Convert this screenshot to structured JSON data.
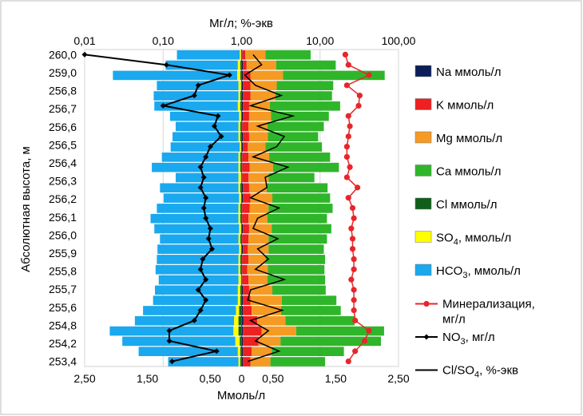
{
  "chart_data": {
    "type": "bar",
    "orientation": "horizontal",
    "title": "",
    "top_axis": {
      "label": "Мг/л; %-экв",
      "scale": "log",
      "range": [
        0.01,
        100
      ],
      "ticks": [
        "0,01",
        "0,10",
        "1,00",
        "10,00",
        "100,00"
      ]
    },
    "bottom_axis": {
      "label": "Ммоль/л",
      "range": [
        -2.5,
        2.5
      ],
      "ticks": [
        "2,50",
        "1,50",
        "0,50",
        "0",
        "0,50",
        "1,50",
        "2,50"
      ]
    },
    "y_axis": {
      "label": "Абсолютная высота, м",
      "tick_labels": [
        "260,0",
        "259,0",
        "256,8",
        "256,7",
        "256,6",
        "256,5",
        "256,4",
        "256,3",
        "256,2",
        "256,1",
        "256,0",
        "255,9",
        "255,8",
        "255,7",
        "255,6",
        "254,8",
        "254,2",
        "253,4"
      ]
    },
    "grid": "vertical",
    "legend_position": "right",
    "colors": {
      "Na": "#0a1e5a",
      "K": "#ee2020",
      "Mg": "#f59a23",
      "Ca": "#2fb52a",
      "Cl": "#0f5f1a",
      "SO4": "#ffff00",
      "HCO3": "#1aa8ee",
      "mineralization": "#e8262a",
      "NO3": "#000000",
      "ClSO4": "#000000"
    },
    "legend": [
      {
        "key": "Na",
        "label": "Na ммоль/л",
        "kind": "bar"
      },
      {
        "key": "K",
        "label": "K ммоль/л",
        "kind": "bar"
      },
      {
        "key": "Mg",
        "label": "Mg ммоль/л",
        "kind": "bar"
      },
      {
        "key": "Ca",
        "label": "Ca ммоль/л",
        "kind": "bar"
      },
      {
        "key": "Cl",
        "label": "Cl ммоль/л",
        "kind": "bar"
      },
      {
        "key": "SO4",
        "label_main": "SO",
        "label_sub": "4",
        "label_rest": ", ммоль/л",
        "kind": "bar"
      },
      {
        "key": "HCO3",
        "label_main": "HCO",
        "label_sub": "3",
        "label_rest": ", ммоль/л",
        "kind": "bar"
      },
      {
        "key": "mineralization",
        "label": "Минерализация,",
        "label2": "мг/л",
        "kind": "line-dot"
      },
      {
        "key": "NO3",
        "label_main": "NO",
        "label_sub": "3",
        "label_rest": ", мг/л",
        "kind": "line-diamond"
      },
      {
        "key": "ClSO4",
        "label_main": "Cl/SO",
        "label_sub": "4",
        "label_rest": ", %-экв",
        "kind": "line"
      }
    ],
    "rows": 31,
    "series": [
      {
        "name": "Na ммоль/л",
        "key": "Na",
        "side": "right",
        "values": [
          0.01,
          0.02,
          0.02,
          0.02,
          0.02,
          0.02,
          0.02,
          0.01,
          0.02,
          0.02,
          0.01,
          0.01,
          0.01,
          0.02,
          0.02,
          0.01,
          0.01,
          0.02,
          0.01,
          0.02,
          0.01,
          0.01,
          0.01,
          0.02,
          0.02,
          0.02,
          0.03,
          0.02,
          0.02,
          0.02,
          0.02
        ]
      },
      {
        "name": "K ммоль/л",
        "key": "K",
        "side": "right",
        "values": [
          0.05,
          0.06,
          0.12,
          0.12,
          0.12,
          0.1,
          0.1,
          0.1,
          0.1,
          0.08,
          0.1,
          0.12,
          0.1,
          0.1,
          0.12,
          0.12,
          0.1,
          0.1,
          0.1,
          0.08,
          0.1,
          0.08,
          0.1,
          0.1,
          0.12,
          0.14,
          0.22,
          0.3,
          0.25,
          0.14,
          0.12
        ]
      },
      {
        "name": "Mg ммоль/л",
        "key": "Mg",
        "side": "right",
        "values": [
          0.32,
          0.47,
          0.52,
          0.42,
          0.4,
          0.33,
          0.35,
          0.3,
          0.3,
          0.28,
          0.33,
          0.37,
          0.32,
          0.28,
          0.35,
          0.3,
          0.3,
          0.36,
          0.32,
          0.33,
          0.27,
          0.33,
          0.3,
          0.37,
          0.5,
          0.47,
          0.45,
          0.55,
          0.35,
          0.32,
          0.32
        ]
      },
      {
        "name": "Ca ммоль/л",
        "key": "Ca",
        "side": "right",
        "values": [
          0.72,
          0.95,
          1.62,
          0.9,
          0.9,
          1.12,
          0.92,
          0.9,
          0.8,
          0.9,
          0.97,
          1.05,
          0.73,
          0.97,
          0.92,
          1.02,
          0.95,
          0.95,
          0.93,
          0.88,
          0.95,
          0.9,
          0.92,
          0.85,
          0.87,
          0.95,
          1.1,
          1.4,
          1.6,
          1.15,
          0.87
        ]
      },
      {
        "name": "Cl ммоль/л",
        "key": "Cl",
        "side": "left",
        "values": [
          0.01,
          0.02,
          0.02,
          0.01,
          0.02,
          0.02,
          0.01,
          0.02,
          0.02,
          0.01,
          0.02,
          0.02,
          0.01,
          0.02,
          0.01,
          0.02,
          0.02,
          0.01,
          0.02,
          0.01,
          0.02,
          0.02,
          0.01,
          0.02,
          0.02,
          0.04,
          0.05,
          0.05,
          0.03,
          0.02,
          0.02
        ]
      },
      {
        "name": "SO4, ммоль/л",
        "key": "SO4",
        "side": "left",
        "values": [
          0.02,
          0.04,
          0.05,
          0.04,
          0.03,
          0.04,
          0.03,
          0.03,
          0.03,
          0.02,
          0.03,
          0.03,
          0.04,
          0.03,
          0.03,
          0.03,
          0.03,
          0.03,
          0.03,
          0.03,
          0.03,
          0.03,
          0.04,
          0.04,
          0.04,
          0.05,
          0.07,
          0.08,
          0.07,
          0.04,
          0.03
        ]
      },
      {
        "name": "HCO3, ммоль/л",
        "key": "HCO3",
        "side": "left",
        "values": [
          1.0,
          1.15,
          1.98,
          1.3,
          1.35,
          1.33,
          1.1,
          1.0,
          1.05,
          1.1,
          1.22,
          1.38,
          1.0,
          1.25,
          1.2,
          1.3,
          1.4,
          1.35,
          1.25,
          1.3,
          1.3,
          1.32,
          1.27,
          1.32,
          1.35,
          1.48,
          1.58,
          1.97,
          1.8,
          1.58,
          1.12
        ]
      },
      {
        "name": "Минерализация, мг/л",
        "key": "mineralization",
        "axis": "top_log",
        "values": [
          21,
          23,
          42,
          22,
          32,
          31,
          23,
          24,
          23,
          22,
          22,
          24,
          22,
          30,
          23,
          26,
          27,
          25,
          26,
          26,
          27,
          27,
          25,
          27,
          27,
          27,
          28,
          42,
          37,
          28,
          23
        ]
      },
      {
        "name": "NO3, мг/л",
        "key": "NO3",
        "axis": "top_log",
        "values": [
          0.01,
          0.11,
          0.7,
          0.28,
          0.25,
          0.1,
          0.5,
          0.45,
          0.55,
          0.4,
          0.35,
          0.3,
          0.33,
          0.3,
          0.35,
          0.33,
          0.35,
          0.4,
          0.38,
          0.42,
          0.32,
          0.3,
          0.35,
          0.28,
          0.35,
          0.3,
          0.25,
          0.12,
          0.12,
          0.48,
          0.13
        ]
      },
      {
        "name": "Cl/SO4, %-экв",
        "key": "ClSO4",
        "axis": "top_log",
        "values": [
          1.4,
          1.8,
          1.1,
          1.5,
          3.2,
          1.3,
          4.5,
          1.6,
          3.5,
          2.8,
          1.4,
          3.9,
          2.0,
          2.1,
          1.3,
          3.0,
          1.6,
          1.4,
          2.9,
          1.6,
          2.2,
          1.5,
          3.5,
          1.3,
          1.2,
          3.3,
          1.3,
          2.2,
          1.5,
          3.0,
          1.2
        ]
      }
    ]
  }
}
